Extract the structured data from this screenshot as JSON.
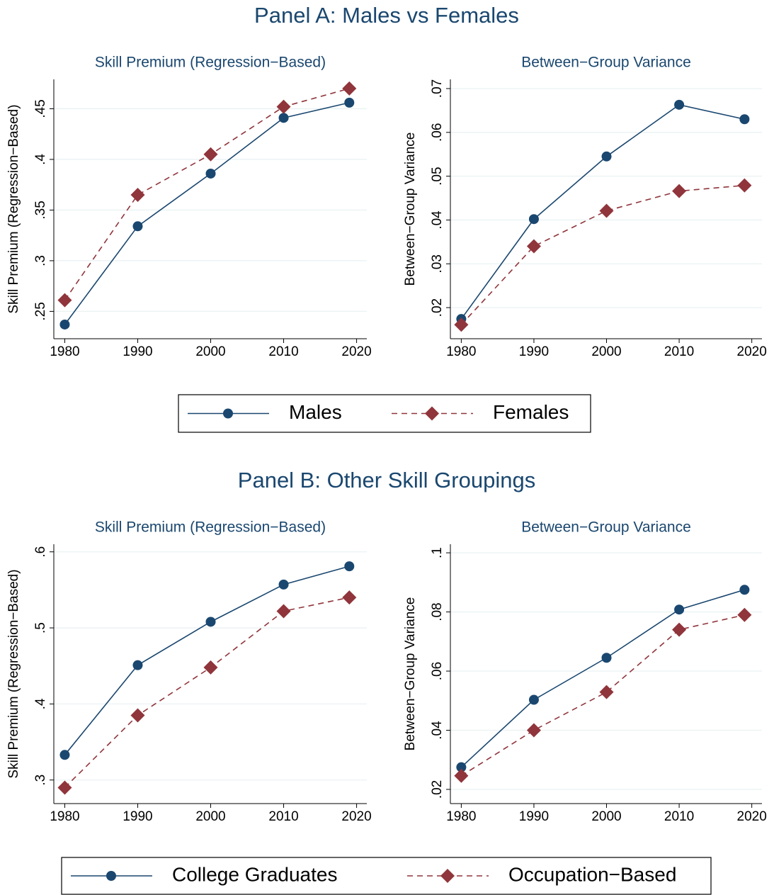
{
  "chart_data": {
    "type": "line",
    "panels": [
      {
        "title": "Panel A: Males vs Females",
        "legend": [
          {
            "name": "Males",
            "color": "#1a476f",
            "marker": "circle",
            "dashed": false
          },
          {
            "name": "Females",
            "color": "#90353b",
            "marker": "diamond",
            "dashed": true
          }
        ],
        "charts": [
          {
            "title": "Skill Premium (Regression−Based)",
            "ylabel": "Skill Premium (Regression−Based)",
            "x": [
              1980,
              1990,
              2000,
              2010,
              2019
            ],
            "xlim": [
              1978.5,
              2021.4
            ],
            "xticks": [
              1980,
              1990,
              2000,
              2010,
              2020
            ],
            "ylim": [
              0.223,
              0.479
            ],
            "yticks": [
              {
                "value": 0.25,
                "label": ".25"
              },
              {
                "value": 0.3,
                "label": ".3"
              },
              {
                "value": 0.35,
                "label": ".35"
              },
              {
                "value": 0.4,
                "label": ".4"
              },
              {
                "value": 0.45,
                "label": ".45"
              }
            ],
            "grid": true,
            "series": [
              {
                "values": [
                  0.237,
                  0.334,
                  0.386,
                  0.441,
                  0.456
                ]
              },
              {
                "values": [
                  0.261,
                  0.365,
                  0.405,
                  0.452,
                  0.47
                ]
              }
            ]
          },
          {
            "title": "Between−Group Variance",
            "ylabel": "Between−Group Variance",
            "x": [
              1980,
              1990,
              2000,
              2010,
              2019
            ],
            "xlim": [
              1978.5,
              2021.4
            ],
            "xticks": [
              1980,
              1990,
              2000,
              2010,
              2020
            ],
            "ylim": [
              0.0129,
              0.0721
            ],
            "yticks": [
              {
                "value": 0.02,
                "label": ".02"
              },
              {
                "value": 0.03,
                "label": ".03"
              },
              {
                "value": 0.04,
                "label": ".04"
              },
              {
                "value": 0.05,
                "label": ".05"
              },
              {
                "value": 0.06,
                "label": ".06"
              },
              {
                "value": 0.07,
                "label": ".07"
              }
            ],
            "grid": true,
            "series": [
              {
                "values": [
                  0.0174,
                  0.0402,
                  0.0545,
                  0.0663,
                  0.063
                ]
              },
              {
                "values": [
                  0.0161,
                  0.034,
                  0.0421,
                  0.0466,
                  0.0479
                ]
              }
            ]
          }
        ]
      },
      {
        "title": "Panel B: Other Skill Groupings",
        "legend": [
          {
            "name": "College Graduates",
            "color": "#1a476f",
            "marker": "circle",
            "dashed": false
          },
          {
            "name": "Occupation−Based",
            "color": "#90353b",
            "marker": "diamond",
            "dashed": true
          }
        ],
        "charts": [
          {
            "title": "Skill Premium (Regression−Based)",
            "ylabel": "Skill Premium (Regression−Based)",
            "x": [
              1980,
              1990,
              2000,
              2010,
              2019
            ],
            "xlim": [
              1978.5,
              2021.4
            ],
            "xticks": [
              1980,
              1990,
              2000,
              2010,
              2020
            ],
            "ylim": [
              0.269,
              0.61
            ],
            "yticks": [
              {
                "value": 0.3,
                "label": ".3"
              },
              {
                "value": 0.4,
                "label": ".4"
              },
              {
                "value": 0.5,
                "label": ".5"
              },
              {
                "value": 0.6,
                "label": ".6"
              }
            ],
            "grid": true,
            "series": [
              {
                "values": [
                  0.333,
                  0.451,
                  0.508,
                  0.557,
                  0.581
                ]
              },
              {
                "values": [
                  0.29,
                  0.385,
                  0.448,
                  0.522,
                  0.54
                ]
              }
            ]
          },
          {
            "title": "Between−Group Variance",
            "ylabel": "Between−Group Variance",
            "x": [
              1980,
              1990,
              2000,
              2010,
              2019
            ],
            "xlim": [
              1978.5,
              2021.4
            ],
            "xticks": [
              1980,
              1990,
              2000,
              2010,
              2020
            ],
            "ylim": [
              0.0152,
              0.1029
            ],
            "yticks": [
              {
                "value": 0.02,
                "label": ".02"
              },
              {
                "value": 0.04,
                "label": ".04"
              },
              {
                "value": 0.06,
                "label": ".06"
              },
              {
                "value": 0.08,
                "label": ".08"
              },
              {
                "value": 0.1,
                "label": ".1"
              }
            ],
            "grid": true,
            "series": [
              {
                "values": [
                  0.0275,
                  0.0503,
                  0.0645,
                  0.0808,
                  0.0875
                ]
              },
              {
                "values": [
                  0.0246,
                  0.04,
                  0.0529,
                  0.074,
                  0.079
                ]
              }
            ]
          }
        ]
      }
    ]
  }
}
